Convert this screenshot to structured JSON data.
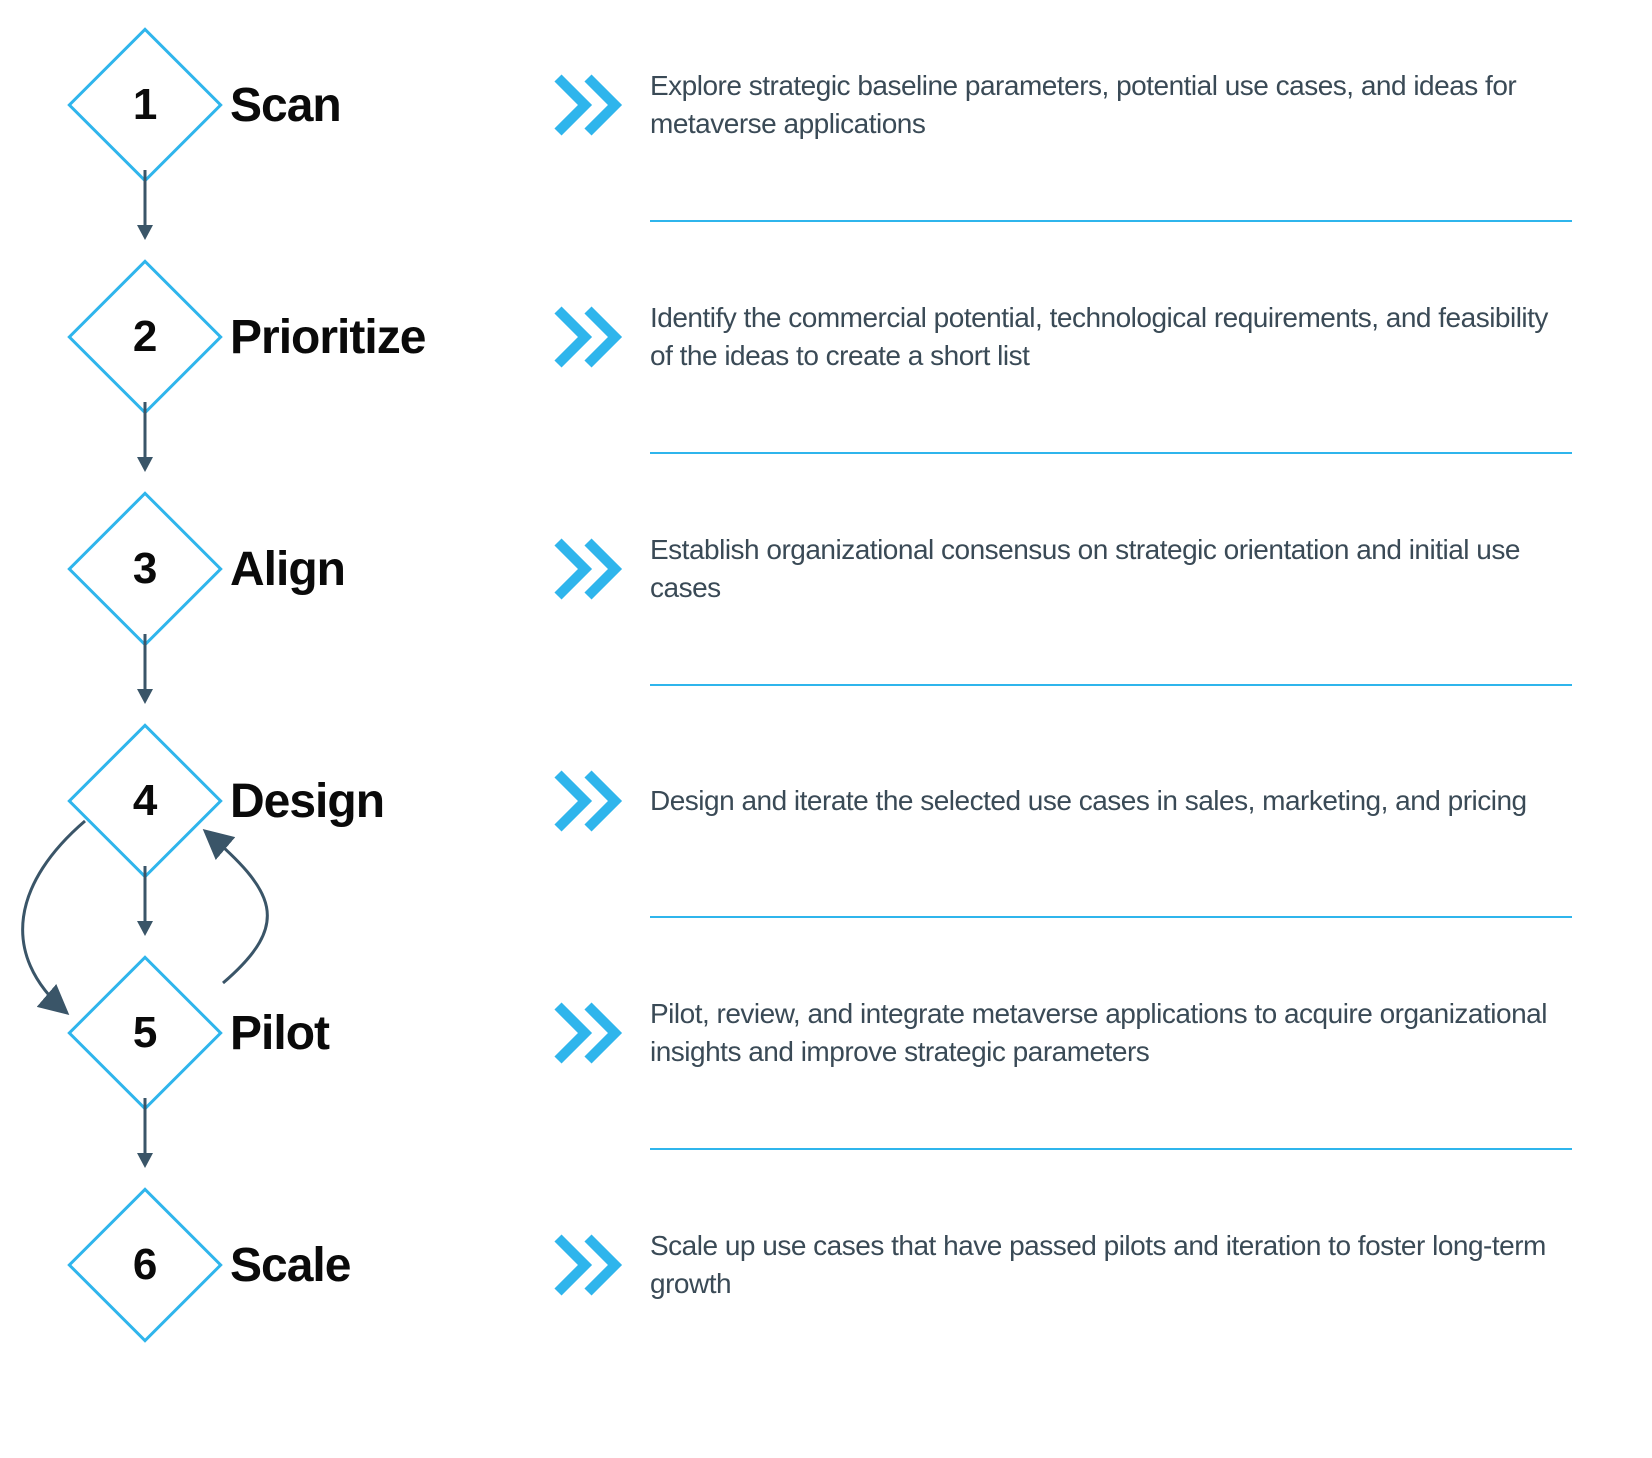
{
  "type": "flowchart",
  "background_color": "#ffffff",
  "accent_color": "#2fb5ec",
  "arrow_color": "#3a5568",
  "text_color": "#0a0a0a",
  "desc_text_color": "#3a4a56",
  "diamond_border_width": 3,
  "diamond_size": 110,
  "number_fontsize": 44,
  "title_fontsize": 48,
  "desc_fontsize": 28,
  "chevron_stroke_width": 10,
  "divider_color": "#2fb5ec",
  "divider_height": 2,
  "row_spacing": 70,
  "loop_arrow_color": "#3a5568",
  "loop_arrow_width": 3,
  "steps": [
    {
      "number": "1",
      "title": "Scan",
      "description": "Explore strategic baseline parameters, potential use cases, and ideas for metaverse applications"
    },
    {
      "number": "2",
      "title": "Prioritize",
      "description": "Identify the commercial potential, technological requirements, and feasibility of the ideas to create a short list"
    },
    {
      "number": "3",
      "title": "Align",
      "description": "Establish organizational consensus on strategic orientation and initial use cases"
    },
    {
      "number": "4",
      "title": "Design",
      "description": "Design and iterate the selected use cases in sales, marketing, and pricing"
    },
    {
      "number": "5",
      "title": "Pilot",
      "description": "Pilot, review, and integrate metaverse applications to acquire organizational insights and improve strategic parameters"
    },
    {
      "number": "6",
      "title": "Scale",
      "description": "Scale up use cases that have passed pilots and iteration to foster long-term growth"
    }
  ],
  "loop": {
    "from_step": 4,
    "to_step": 5,
    "bidirectional": true
  }
}
